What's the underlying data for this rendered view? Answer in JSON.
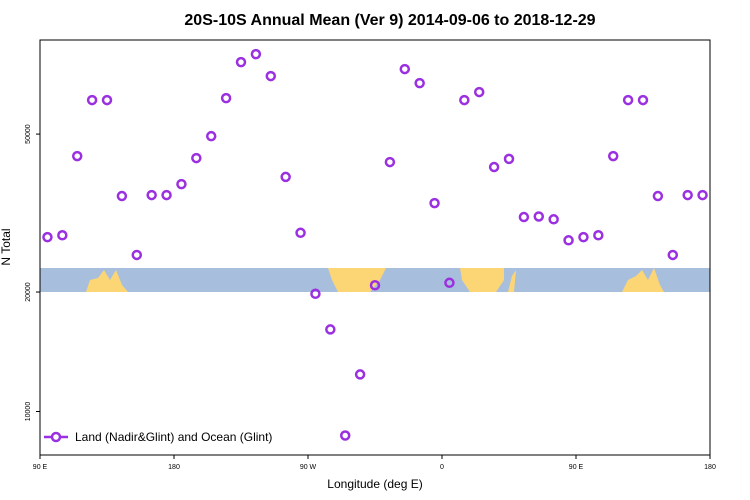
{
  "chart_data": {
    "type": "scatter",
    "title": "20S-10S Annual Mean (Ver 9)   2014-09-06 to 2018-12-29",
    "xlabel": "Longitude (deg E)",
    "ylabel": "N Total",
    "log_y": true,
    "legend": "lower left",
    "xlim": [
      90,
      540
    ],
    "xticks": [
      {
        "value": 90,
        "label": "90 E"
      },
      {
        "value": 180,
        "label": "180"
      },
      {
        "value": 270,
        "label": "90 W"
      },
      {
        "value": 360,
        "label": "0"
      },
      {
        "value": 450,
        "label": "90 E"
      },
      {
        "value": 540,
        "label": "180"
      }
    ],
    "ylim": [
      7770,
      86300
    ],
    "yticks": [
      10000,
      20000,
      50000
    ],
    "series": [
      {
        "name": "Land (Nadir&Glint) and Ocean (Glint)",
        "color": "#9b30e0",
        "x": [
          95,
          105,
          115,
          125,
          135,
          145,
          155,
          165,
          175,
          185,
          195,
          205,
          215,
          225,
          235,
          245,
          255,
          265,
          275,
          285,
          295,
          305,
          315,
          325,
          335,
          345,
          355,
          365,
          375,
          385,
          395,
          405,
          415,
          425,
          435,
          445,
          455,
          465,
          475,
          485,
          495,
          505,
          515,
          525,
          535
        ],
        "values": [
          27500,
          27800,
          44000,
          60900,
          60900,
          34900,
          24800,
          35100,
          35100,
          37400,
          43500,
          49400,
          61600,
          75900,
          79500,
          70000,
          39000,
          28200,
          19800,
          16100,
          8700,
          12400,
          20800,
          42500,
          72900,
          67200,
          33500,
          21100,
          60900,
          63800,
          41300,
          43300,
          30900,
          31000,
          30500,
          27000,
          27500,
          27800,
          44000,
          60900,
          60900,
          34900,
          24800,
          35100,
          35100
        ]
      }
    ]
  }
}
